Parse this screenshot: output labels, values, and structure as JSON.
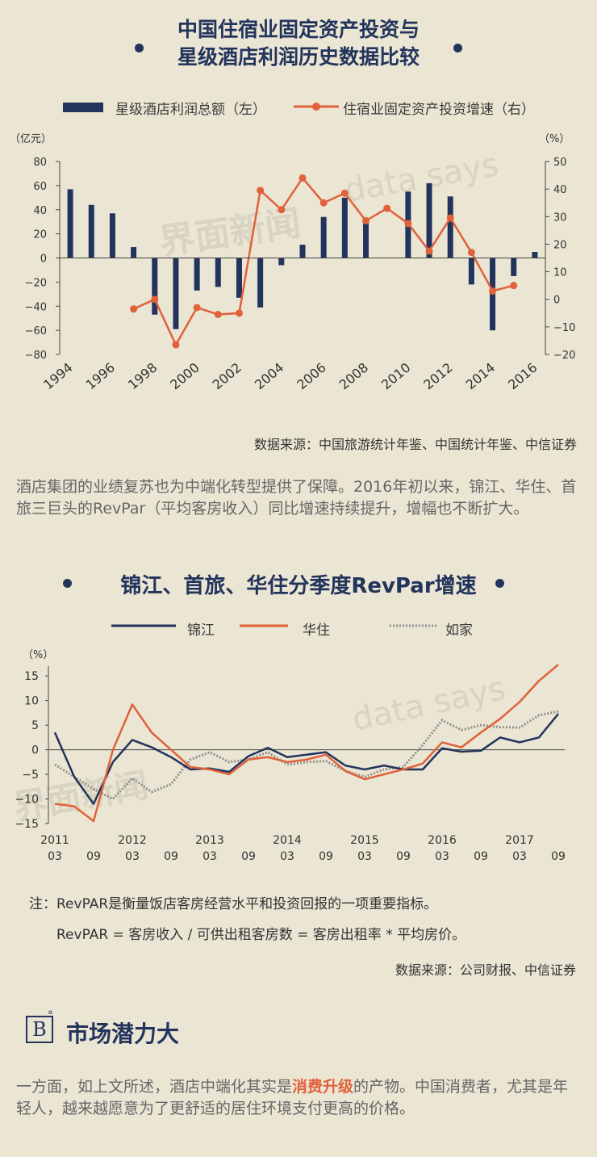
{
  "chart1": {
    "title_line1": "中国住宿业固定资产投资与",
    "title_line2": "星级酒店利润历史数据比较",
    "legend_bar": "星级酒店利润总额（左）",
    "legend_line": "住宿业固定资产投资增速（右）",
    "left_unit": "（亿元）",
    "right_unit": "（%）",
    "source": "数据来源：中国旅游统计年鉴、中国统计年鉴、中信证券",
    "watermark1": "界面新闻",
    "watermark2": "data says",
    "colors": {
      "bar": "#22345c",
      "line": "#e0613a"
    }
  },
  "paragraph1": "酒店集团的业绩复苏也为中端化转型提供了保障。2016年初以来，锦江、华住、首旅三巨头的RevPar（平均客房收入）同比增速持续提升，增幅也不断扩大。",
  "chart2": {
    "title": "锦江、首旅、华住分季度RevPar增速",
    "legend": [
      "锦江",
      "华住",
      "如家"
    ],
    "unit": "（%）",
    "note_line1": "注：RevPAR是衡量饭店客房经营水平和投资回报的一项重要指标。",
    "note_line2": "RevPAR = 客房收入 / 可供出租客房数 = 客房出租率 * 平均房价。",
    "source": "数据来源：公司财报、中信证券",
    "watermark1": "界面新闻",
    "watermark2": "data says",
    "colors": {
      "jinjiang": "#22345c",
      "huazhu": "#e0613a",
      "rujia": "#8f8f8f"
    }
  },
  "section": {
    "logo": "B",
    "logo_mark": "°",
    "heading": "市场潜力大",
    "para_before": "一方面，如上文所述，酒店中端化其实是",
    "para_highlight": "消费升级",
    "para_after": "的产物。中国消费者，尤其是年轻人，越来越愿意为了更舒适的居住环境支付更高的价格。"
  },
  "chart_data": [
    {
      "type": "bar+line",
      "title": "中国住宿业固定资产投资与星级酒店利润历史数据比较",
      "x": [
        1994,
        1995,
        1996,
        1997,
        1998,
        1999,
        2000,
        2001,
        2002,
        2003,
        2004,
        2005,
        2006,
        2007,
        2008,
        2009,
        2010,
        2011,
        2012,
        2013,
        2014,
        2015,
        2016
      ],
      "x_tick_labels": [
        "1994",
        "1996",
        "1998",
        "2000",
        "2002",
        "2004",
        "2006",
        "2008",
        "2010",
        "2012",
        "2014",
        "2016"
      ],
      "series": [
        {
          "name": "星级酒店利润总额（左）",
          "axis": "left",
          "kind": "bar",
          "values": [
            57,
            44,
            37,
            9,
            -47,
            -59,
            -27,
            -24,
            -33,
            -41,
            -6,
            11,
            34,
            50,
            31,
            0,
            55,
            62,
            51,
            -22,
            -60,
            -15,
            5
          ]
        },
        {
          "name": "住宿业固定资产投资增速（右）",
          "axis": "right",
          "kind": "line",
          "values": [
            null,
            null,
            null,
            -3.5,
            0,
            -16.5,
            -3,
            -5.5,
            -5,
            39.5,
            32.5,
            44,
            35,
            38.5,
            28.5,
            33,
            27.5,
            17.5,
            29.5,
            17,
            3,
            5,
            null
          ]
        }
      ],
      "y_left": {
        "lim": [
          -80,
          80
        ],
        "ticks": [
          80,
          60,
          40,
          20,
          0,
          -20,
          -40,
          -60,
          -80
        ]
      },
      "y_right": {
        "lim": [
          -20,
          50
        ],
        "ticks": [
          50,
          40,
          30,
          20,
          10,
          0,
          -10,
          -20
        ]
      }
    },
    {
      "type": "line",
      "title": "锦江、首旅、华住分季度RevPar增速",
      "x": [
        "2011Q1",
        "2011Q2",
        "2011Q3",
        "2011Q4",
        "2012Q1",
        "2012Q2",
        "2012Q3",
        "2012Q4",
        "2013Q1",
        "2013Q2",
        "2013Q3",
        "2013Q4",
        "2014Q1",
        "2014Q2",
        "2014Q3",
        "2014Q4",
        "2015Q1",
        "2015Q2",
        "2015Q3",
        "2015Q4",
        "2016Q1",
        "2016Q2",
        "2016Q3",
        "2016Q4",
        "2017Q1",
        "2017Q2",
        "2017Q3"
      ],
      "x_tick_labels": [
        {
          "year": "2011",
          "q": "03"
        },
        {
          "year": "",
          "q": "09"
        },
        {
          "year": "2012",
          "q": "03"
        },
        {
          "year": "",
          "q": "09"
        },
        {
          "year": "2013",
          "q": "03"
        },
        {
          "year": "",
          "q": "09"
        },
        {
          "year": "2014",
          "q": "03"
        },
        {
          "year": "",
          "q": "09"
        },
        {
          "year": "2015",
          "q": "03"
        },
        {
          "year": "",
          "q": "09"
        },
        {
          "year": "2016",
          "q": "03"
        },
        {
          "year": "",
          "q": "09"
        },
        {
          "year": "2017",
          "q": "03"
        },
        {
          "year": "",
          "q": "09"
        }
      ],
      "series": [
        {
          "name": "锦江",
          "style": "solid",
          "values": [
            3.5,
            -5.5,
            -11,
            -2.5,
            2,
            0.5,
            -1.5,
            -4,
            -3.8,
            -4.5,
            -1.3,
            0.4,
            -1.5,
            -1,
            -0.5,
            -3.2,
            -4,
            -3.2,
            -4,
            -4,
            0.3,
            -0.4,
            -0.2,
            2.5,
            1.5,
            2.5,
            7.3
          ]
        },
        {
          "name": "华住",
          "style": "solid",
          "values": [
            -11,
            -11.5,
            -14.5,
            0,
            9.2,
            3.5,
            0,
            -3.5,
            -4,
            -5,
            -2,
            -1.5,
            -2.5,
            -2,
            -1,
            -4.3,
            -6,
            -5,
            -4,
            -2.8,
            1.5,
            0.5,
            3.5,
            6.3,
            9.7,
            14,
            17.3
          ]
        },
        {
          "name": "如家",
          "style": "dotted",
          "values": [
            -3,
            -5.5,
            -8,
            -10,
            -5.8,
            -8.6,
            -7,
            -2,
            -0.5,
            -2.5,
            -2,
            -0.5,
            -3,
            -2.5,
            -2.3,
            -4.3,
            -5.5,
            -4,
            -3.5,
            1,
            6,
            4,
            5,
            4.6,
            4.5,
            7,
            7.8
          ]
        }
      ],
      "y_ticks": [
        15,
        10,
        5,
        0,
        -5,
        -10,
        -15
      ],
      "ylim": [
        -15,
        17
      ]
    }
  ]
}
